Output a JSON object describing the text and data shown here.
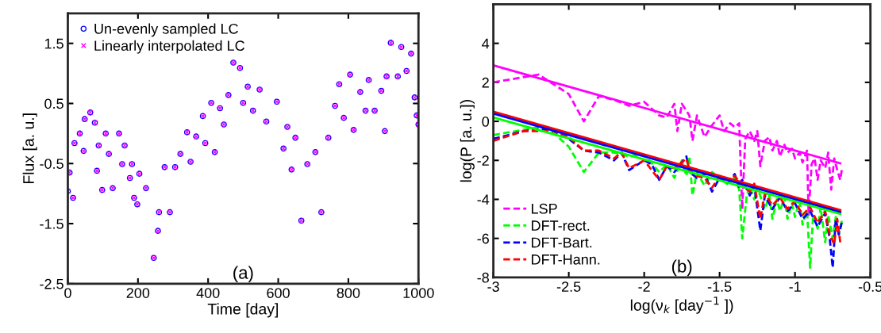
{
  "chart_data": [
    {
      "type": "scatter",
      "xlabel": "Time [day]",
      "ylabel": "Flux [a. u.]",
      "xlim": [
        0,
        1000
      ],
      "ylim": [
        -2.5,
        2
      ],
      "xticks": [
        0,
        200,
        400,
        600,
        800,
        1000
      ],
      "yticks": [
        -2.5,
        -1.5,
        -0.5,
        0.5,
        1.5
      ],
      "legend": "top left",
      "annotations": [
        "(a)"
      ],
      "x": [
        0,
        5,
        15,
        19,
        34,
        45,
        48,
        64,
        77,
        83,
        88,
        98,
        108,
        117,
        128,
        146,
        155,
        162,
        177,
        183,
        189,
        198,
        204,
        223,
        245,
        257,
        260,
        276,
        291,
        306,
        321,
        340,
        350,
        366,
        385,
        392,
        409,
        419,
        434,
        445,
        458,
        472,
        491,
        500,
        513,
        528,
        547,
        566,
        596,
        615,
        626,
        638,
        649,
        666,
        683,
        706,
        723,
        743,
        762,
        774,
        787,
        805,
        815,
        834,
        849,
        858,
        875,
        894,
        904,
        909,
        921,
        941,
        951,
        966,
        979,
        989,
        995,
        1000
      ],
      "series": [
        {
          "name": "Un-evenly sampled LC",
          "color": "#0000ff",
          "marker": "circle",
          "values": [
            -0.96,
            -0.65,
            -1.07,
            -0.16,
            0.0,
            -0.29,
            0.24,
            0.35,
            0.18,
            -0.62,
            -0.2,
            -0.94,
            0.0,
            -0.34,
            -0.91,
            0.0,
            -0.51,
            -0.2,
            -0.74,
            -0.51,
            -1.07,
            -1.18,
            -0.67,
            -0.91,
            -2.07,
            -1.62,
            -1.31,
            -0.56,
            -1.31,
            -0.56,
            -0.34,
            0.02,
            -0.47,
            -0.05,
            0.29,
            -0.16,
            0.51,
            -0.31,
            0.42,
            0.15,
            0.64,
            1.18,
            1.09,
            0.51,
            0.78,
            0.38,
            0.73,
            0.2,
            0.53,
            -0.25,
            0.11,
            -0.6,
            -0.07,
            -1.45,
            -0.51,
            -0.31,
            -1.31,
            -0.07,
            0.46,
            0.82,
            0.26,
            0.98,
            0.06,
            0.69,
            0.38,
            0.89,
            0.38,
            0.71,
            0.04,
            0.95,
            1.51,
            0.95,
            1.44,
            1.04,
            1.33,
            0.6,
            0.3,
            0.15
          ]
        },
        {
          "name": "Linearly interpolated LC",
          "color": "#ff00ff",
          "marker": "cross",
          "values": [
            -0.96,
            -0.65,
            -1.07,
            -0.16,
            0.0,
            -0.29,
            0.24,
            0.35,
            0.18,
            -0.62,
            -0.2,
            -0.94,
            0.0,
            -0.34,
            -0.91,
            0.0,
            -0.51,
            -0.2,
            -0.74,
            -0.51,
            -1.07,
            -1.18,
            -0.67,
            -0.91,
            -2.07,
            -1.62,
            -1.31,
            -0.56,
            -1.31,
            -0.56,
            -0.34,
            0.02,
            -0.47,
            -0.05,
            0.29,
            -0.16,
            0.51,
            -0.31,
            0.42,
            0.15,
            0.64,
            1.18,
            1.09,
            0.51,
            0.78,
            0.38,
            0.73,
            0.2,
            0.53,
            -0.25,
            0.11,
            -0.6,
            -0.07,
            -1.45,
            -0.51,
            -0.31,
            -1.31,
            -0.07,
            0.46,
            0.82,
            0.26,
            0.98,
            0.06,
            0.69,
            0.38,
            0.89,
            0.38,
            0.71,
            0.04,
            0.95,
            1.51,
            0.95,
            1.44,
            1.04,
            1.33,
            0.6,
            0.3,
            0.15
          ]
        }
      ]
    },
    {
      "type": "line",
      "xlabel": "log(ν$_{k}$ [day$^{−1}$ ])",
      "ylabel": "log(P [a. u.])",
      "xlim": [
        -3,
        -0.5
      ],
      "ylim": [
        -8,
        6
      ],
      "xticks": [
        -3,
        -2.5,
        -2,
        -1.5,
        -1,
        -0.5
      ],
      "yticks": [
        -8,
        -6,
        -4,
        -2,
        0,
        2,
        4
      ],
      "legend": "bottom left",
      "annotations": [
        "(b)"
      ],
      "series": [
        {
          "name": "LSP",
          "color": "#ff00ff",
          "line_style": "dashed",
          "x": [
            -3,
            -2.7,
            -2.6,
            -2.5,
            -2.4,
            -2.3,
            -2.2,
            -2.1,
            -2.0,
            -1.9,
            -1.85,
            -1.8,
            -1.78,
            -1.75,
            -1.7,
            -1.68,
            -1.65,
            -1.6,
            -1.55,
            -1.5,
            -1.47,
            -1.43,
            -1.4,
            -1.37,
            -1.35,
            -1.33,
            -1.3,
            -1.27,
            -1.25,
            -1.23,
            -1.2,
            -1.17,
            -1.15,
            -1.12,
            -1.1,
            -1.07,
            -1.05,
            -1.02,
            -1.0,
            -0.97,
            -0.95,
            -0.92,
            -0.91,
            -0.89,
            -0.87,
            -0.85,
            -0.83,
            -0.8,
            -0.78,
            -0.76,
            -0.74,
            -0.72,
            -0.7,
            -0.69
          ],
          "values": [
            2.0,
            2.4,
            1.9,
            1.4,
            0.0,
            1.3,
            1.1,
            0.8,
            1.0,
            0.3,
            0.2,
            0.9,
            -0.5,
            0.9,
            0.3,
            -1.0,
            0.3,
            -0.8,
            -0.2,
            0.3,
            -0.5,
            -0.1,
            -0.3,
            -0.1,
            -4.5,
            -0.9,
            -0.5,
            -1.0,
            -0.5,
            -2.3,
            -1.0,
            -0.8,
            -1.5,
            -1.0,
            -1.8,
            -1.2,
            -1.6,
            -1.4,
            -1.9,
            -1.6,
            -2.1,
            -1.5,
            -4.8,
            -2.2,
            -1.9,
            -3.0,
            -2.0,
            -2.4,
            -1.6,
            -3.5,
            -1.9,
            -2.5,
            -3.0,
            -2.5
          ]
        },
        {
          "name": "DFT-rect.",
          "color": "#00ff00",
          "line_style": "dashed",
          "x": [
            -3,
            -2.7,
            -2.6,
            -2.5,
            -2.4,
            -2.3,
            -2.2,
            -2.1,
            -2.0,
            -1.9,
            -1.85,
            -1.8,
            -1.75,
            -1.72,
            -1.7,
            -1.68,
            -1.65,
            -1.6,
            -1.55,
            -1.5,
            -1.45,
            -1.4,
            -1.37,
            -1.35,
            -1.32,
            -1.3,
            -1.27,
            -1.25,
            -1.2,
            -1.17,
            -1.15,
            -1.12,
            -1.1,
            -1.07,
            -1.05,
            -1.02,
            -1.0,
            -0.97,
            -0.95,
            -0.92,
            -0.9,
            -0.88,
            -0.85,
            -0.83,
            -0.8,
            -0.78,
            -0.75,
            -0.73,
            -0.71,
            -0.69
          ],
          "values": [
            -0.7,
            -0.3,
            -0.6,
            -1.3,
            -2.6,
            -1.6,
            -1.6,
            -1.8,
            -1.7,
            -2.6,
            -2.2,
            -2.9,
            -2.0,
            -2.8,
            -1.8,
            -3.8,
            -2.6,
            -3.3,
            -2.6,
            -2.9,
            -3.2,
            -2.9,
            -3.5,
            -6.0,
            -3.8,
            -3.3,
            -4.0,
            -3.4,
            -4.5,
            -3.8,
            -5.0,
            -4.0,
            -4.6,
            -3.9,
            -5.0,
            -4.2,
            -4.9,
            -4.1,
            -5.3,
            -4.6,
            -7.5,
            -4.8,
            -5.5,
            -4.4,
            -6.2,
            -4.8,
            -6.0,
            -4.9,
            -5.8,
            -5.1
          ]
        },
        {
          "name": "DFT-Bart.",
          "color": "#0000ff",
          "line_style": "dashed",
          "x": [
            -3,
            -2.8,
            -2.7,
            -2.6,
            -2.5,
            -2.4,
            -2.3,
            -2.2,
            -2.15,
            -2.1,
            -2.0,
            -1.95,
            -1.9,
            -1.85,
            -1.8,
            -1.75,
            -1.72,
            -1.7,
            -1.65,
            -1.6,
            -1.55,
            -1.5,
            -1.45,
            -1.4,
            -1.37,
            -1.35,
            -1.3,
            -1.27,
            -1.23,
            -1.2,
            -1.15,
            -1.1,
            -1.05,
            -1.0,
            -0.95,
            -0.9,
            -0.85,
            -0.8,
            -0.77,
            -0.75,
            -0.73,
            -0.71,
            -0.69
          ],
          "values": [
            -0.9,
            -0.5,
            -0.4,
            -0.5,
            -0.9,
            -1.5,
            -1.6,
            -2.0,
            -1.6,
            -2.5,
            -2.0,
            -2.2,
            -3.0,
            -2.3,
            -2.6,
            -2.1,
            -1.8,
            -2.6,
            -2.9,
            -2.7,
            -3.6,
            -2.9,
            -3.2,
            -2.7,
            -3.4,
            -3.0,
            -3.8,
            -3.3,
            -5.6,
            -3.8,
            -4.5,
            -3.9,
            -4.6,
            -4.2,
            -5.0,
            -4.6,
            -5.4,
            -4.7,
            -6.0,
            -7.5,
            -5.0,
            -5.8,
            -5.2
          ]
        },
        {
          "name": "DFT-Hann.",
          "color": "#ff0000",
          "line_style": "dashed",
          "x": [
            -3,
            -2.8,
            -2.6,
            -2.5,
            -2.4,
            -2.3,
            -2.2,
            -2.15,
            -2.1,
            -2.0,
            -1.9,
            -1.85,
            -1.8,
            -1.75,
            -1.72,
            -1.7,
            -1.65,
            -1.6,
            -1.55,
            -1.5,
            -1.45,
            -1.4,
            -1.35,
            -1.3,
            -1.27,
            -1.23,
            -1.2,
            -1.15,
            -1.1,
            -1.05,
            -1.0,
            -0.95,
            -0.9,
            -0.85,
            -0.8,
            -0.77,
            -0.74,
            -0.72,
            -0.7
          ],
          "values": [
            -1.0,
            -0.5,
            -0.5,
            -0.8,
            -1.5,
            -1.5,
            -1.9,
            -1.6,
            -2.4,
            -2.0,
            -3.0,
            -2.3,
            -2.4,
            -2.1,
            -1.9,
            -2.5,
            -2.8,
            -2.9,
            -3.4,
            -2.8,
            -3.0,
            -2.8,
            -3.3,
            -3.6,
            -3.2,
            -5.0,
            -3.7,
            -4.3,
            -3.9,
            -4.5,
            -4.1,
            -4.8,
            -4.4,
            -5.2,
            -4.6,
            -5.8,
            -6.3,
            -5.0,
            -6.2
          ]
        },
        {
          "color": "#ff00ff",
          "line_style": "solid",
          "x": [
            -3,
            -0.7
          ],
          "values": [
            2.87,
            -2.15
          ]
        },
        {
          "color": "#ff0000",
          "line_style": "solid",
          "x": [
            -3,
            -0.7
          ],
          "values": [
            0.5,
            -4.55
          ]
        },
        {
          "color": "#0000ff",
          "line_style": "solid",
          "x": [
            -3,
            -0.7
          ],
          "values": [
            0.4,
            -4.65
          ]
        },
        {
          "color": "#00ff00",
          "line_style": "solid",
          "x": [
            -3,
            -0.7
          ],
          "values": [
            0.2,
            -4.75
          ]
        }
      ]
    }
  ]
}
